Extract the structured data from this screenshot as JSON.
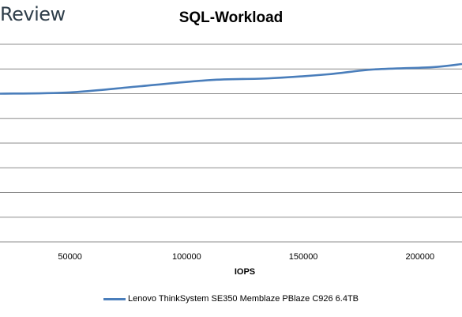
{
  "brand": "Review",
  "chart_data": {
    "type": "line",
    "title": "SQL-Workload",
    "xlabel": "IOPS",
    "ylabel": "",
    "xlim": [
      20000,
      218000
    ],
    "ylim": [
      0,
      8
    ],
    "x_ticks": [
      50000,
      100000,
      150000,
      200000
    ],
    "grid": true,
    "legend_position": "bottom",
    "series": [
      {
        "name": "Lenovo ThinkSystem SE350 Memblaze PBlaze C926 6.4TB",
        "color": "#4a7ebb",
        "x": [
          20000,
          50000,
          80000,
          110000,
          135000,
          160000,
          180000,
          205000,
          218000
        ],
        "y": [
          6.0,
          6.05,
          6.3,
          6.55,
          6.62,
          6.78,
          6.98,
          7.07,
          7.2
        ]
      }
    ]
  }
}
